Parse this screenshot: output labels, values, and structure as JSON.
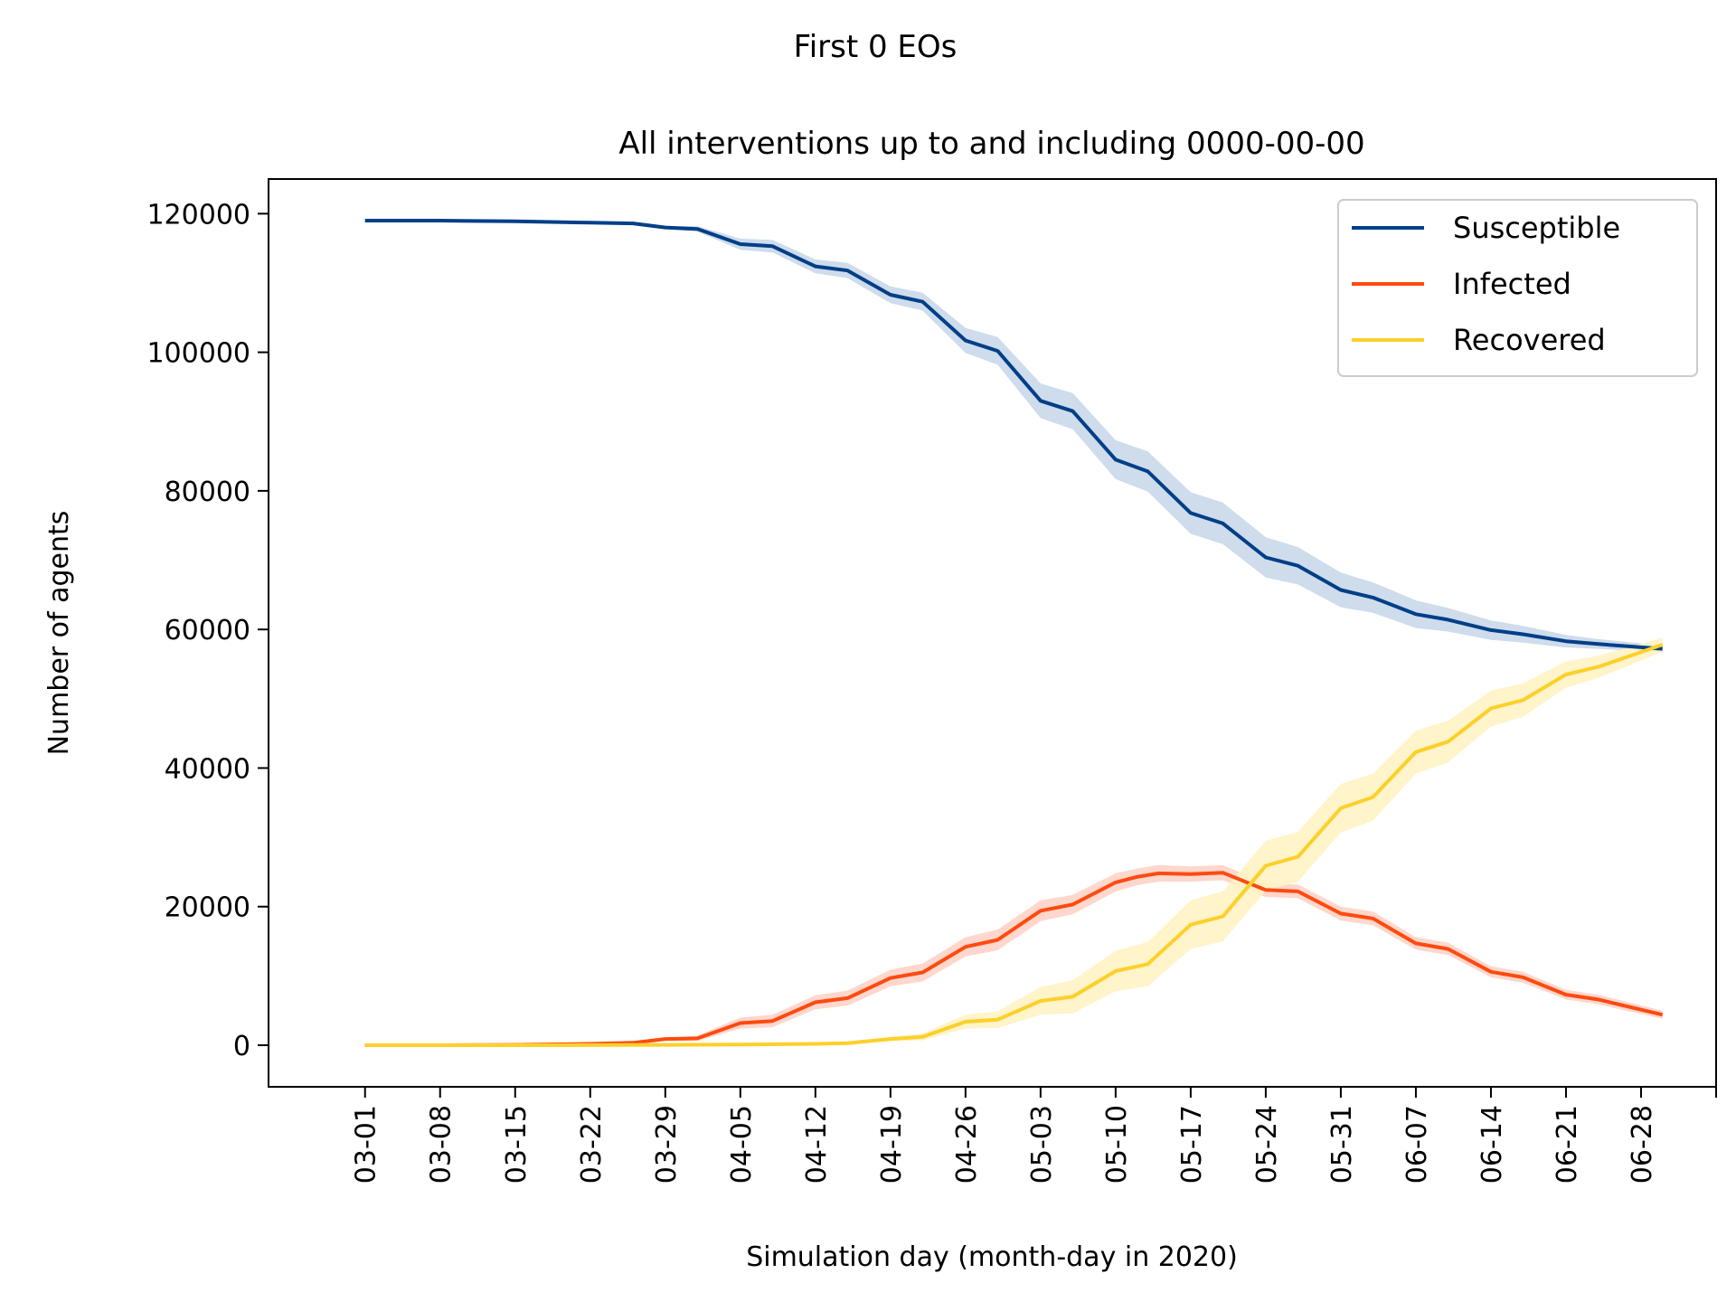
{
  "chart_data": {
    "type": "line",
    "suptitle": "First 0 EOs",
    "title": "All interventions up to and including 0000-00-00",
    "xlabel": "Simulation day (month-day in 2020)",
    "ylabel": "Number of agents",
    "x_start": "2020-03-01",
    "x_end": "2020-06-30",
    "xlim": [
      "2020-02-21",
      "2020-07-05"
    ],
    "ylim": [
      -6000,
      125000
    ],
    "x_ticks": [
      "03-01",
      "03-08",
      "03-15",
      "03-22",
      "03-29",
      "04-05",
      "04-12",
      "04-19",
      "04-26",
      "05-03",
      "05-10",
      "05-17",
      "05-24",
      "05-31",
      "06-07",
      "06-14",
      "06-21",
      "06-28"
    ],
    "y_ticks": [
      0,
      20000,
      40000,
      60000,
      80000,
      100000,
      120000
    ],
    "y_tick_labels": [
      "0",
      "20000",
      "40000",
      "60000",
      "80000",
      "100000",
      "120000"
    ],
    "legend_position": "top-right",
    "grid": false,
    "series": [
      {
        "name": "Susceptible",
        "color": "#003f88",
        "band_color": "#c9d8ea",
        "points": [
          [
            "2020-03-01",
            119000
          ],
          [
            "2020-03-08",
            119000
          ],
          [
            "2020-03-15",
            118900
          ],
          [
            "2020-03-22",
            118700
          ],
          [
            "2020-03-26",
            118600
          ],
          [
            "2020-03-29",
            118000
          ],
          [
            "2020-04-01",
            117800
          ],
          [
            "2020-04-05",
            115600
          ],
          [
            "2020-04-08",
            115300
          ],
          [
            "2020-04-12",
            112400
          ],
          [
            "2020-04-15",
            111800
          ],
          [
            "2020-04-19",
            108300
          ],
          [
            "2020-04-22",
            107300
          ],
          [
            "2020-04-26",
            101700
          ],
          [
            "2020-04-29",
            100200
          ],
          [
            "2020-05-03",
            93000
          ],
          [
            "2020-05-06",
            91500
          ],
          [
            "2020-05-10",
            84500
          ],
          [
            "2020-05-13",
            82800
          ],
          [
            "2020-05-17",
            76800
          ],
          [
            "2020-05-20",
            75300
          ],
          [
            "2020-05-24",
            70400
          ],
          [
            "2020-05-27",
            69200
          ],
          [
            "2020-05-31",
            65700
          ],
          [
            "2020-06-03",
            64600
          ],
          [
            "2020-06-07",
            62200
          ],
          [
            "2020-06-10",
            61400
          ],
          [
            "2020-06-14",
            59900
          ],
          [
            "2020-06-17",
            59300
          ],
          [
            "2020-06-21",
            58300
          ],
          [
            "2020-06-24",
            57900
          ],
          [
            "2020-06-30",
            57200
          ]
        ],
        "band_halfwidth": [
          0,
          0,
          0,
          0,
          0,
          200,
          400,
          800,
          900,
          1000,
          1100,
          1200,
          1300,
          1800,
          2000,
          2500,
          2600,
          2800,
          2900,
          3000,
          3000,
          2900,
          2700,
          2500,
          2200,
          2000,
          1700,
          1400,
          1200,
          900,
          700,
          500
        ]
      },
      {
        "name": "Infected",
        "color": "#ff4a10",
        "band_color": "#ffd3c6",
        "points": [
          [
            "2020-03-01",
            0
          ],
          [
            "2020-03-08",
            0
          ],
          [
            "2020-03-15",
            50
          ],
          [
            "2020-03-22",
            200
          ],
          [
            "2020-03-26",
            350
          ],
          [
            "2020-03-29",
            900
          ],
          [
            "2020-04-01",
            1000
          ],
          [
            "2020-04-05",
            3200
          ],
          [
            "2020-04-08",
            3500
          ],
          [
            "2020-04-12",
            6200
          ],
          [
            "2020-04-15",
            6800
          ],
          [
            "2020-04-19",
            9700
          ],
          [
            "2020-04-22",
            10500
          ],
          [
            "2020-04-26",
            14200
          ],
          [
            "2020-04-29",
            15200
          ],
          [
            "2020-05-03",
            19400
          ],
          [
            "2020-05-06",
            20300
          ],
          [
            "2020-05-10",
            23500
          ],
          [
            "2020-05-12",
            24300
          ],
          [
            "2020-05-14",
            24800
          ],
          [
            "2020-05-17",
            24700
          ],
          [
            "2020-05-20",
            24900
          ],
          [
            "2020-05-24",
            22400
          ],
          [
            "2020-05-27",
            22200
          ],
          [
            "2020-05-31",
            19000
          ],
          [
            "2020-06-03",
            18300
          ],
          [
            "2020-06-07",
            14700
          ],
          [
            "2020-06-10",
            13900
          ],
          [
            "2020-06-14",
            10600
          ],
          [
            "2020-06-17",
            9800
          ],
          [
            "2020-06-21",
            7300
          ],
          [
            "2020-06-24",
            6600
          ],
          [
            "2020-06-30",
            4400
          ]
        ],
        "band_halfwidth": [
          0,
          0,
          0,
          0,
          0,
          200,
          400,
          800,
          900,
          1000,
          1100,
          1200,
          1300,
          1400,
          1500,
          1500,
          1400,
          1300,
          1200,
          1200,
          1100,
          1100,
          1000,
          1000,
          1000,
          1000,
          900,
          900,
          800,
          800,
          700,
          700,
          600
        ]
      },
      {
        "name": "Recovered",
        "color": "#fdd02a",
        "band_color": "#fff3c4",
        "points": [
          [
            "2020-03-01",
            0
          ],
          [
            "2020-03-15",
            0
          ],
          [
            "2020-03-29",
            50
          ],
          [
            "2020-04-05",
            100
          ],
          [
            "2020-04-12",
            200
          ],
          [
            "2020-04-15",
            300
          ],
          [
            "2020-04-19",
            900
          ],
          [
            "2020-04-22",
            1200
          ],
          [
            "2020-04-26",
            3400
          ],
          [
            "2020-04-29",
            3700
          ],
          [
            "2020-05-03",
            6400
          ],
          [
            "2020-05-06",
            7000
          ],
          [
            "2020-05-10",
            10700
          ],
          [
            "2020-05-13",
            11700
          ],
          [
            "2020-05-17",
            17400
          ],
          [
            "2020-05-20",
            18600
          ],
          [
            "2020-05-24",
            25900
          ],
          [
            "2020-05-27",
            27200
          ],
          [
            "2020-05-31",
            34200
          ],
          [
            "2020-06-03",
            35800
          ],
          [
            "2020-06-07",
            42300
          ],
          [
            "2020-06-10",
            43800
          ],
          [
            "2020-06-14",
            48600
          ],
          [
            "2020-06-17",
            49800
          ],
          [
            "2020-06-21",
            53500
          ],
          [
            "2020-06-24",
            54600
          ],
          [
            "2020-06-30",
            57800
          ]
        ],
        "band_halfwidth": [
          0,
          0,
          0,
          0,
          100,
          200,
          300,
          500,
          1000,
          1200,
          2000,
          2400,
          2900,
          3200,
          3500,
          3600,
          3600,
          3600,
          3500,
          3400,
          3100,
          3000,
          2600,
          2400,
          1900,
          1600,
          1000
        ]
      }
    ]
  }
}
